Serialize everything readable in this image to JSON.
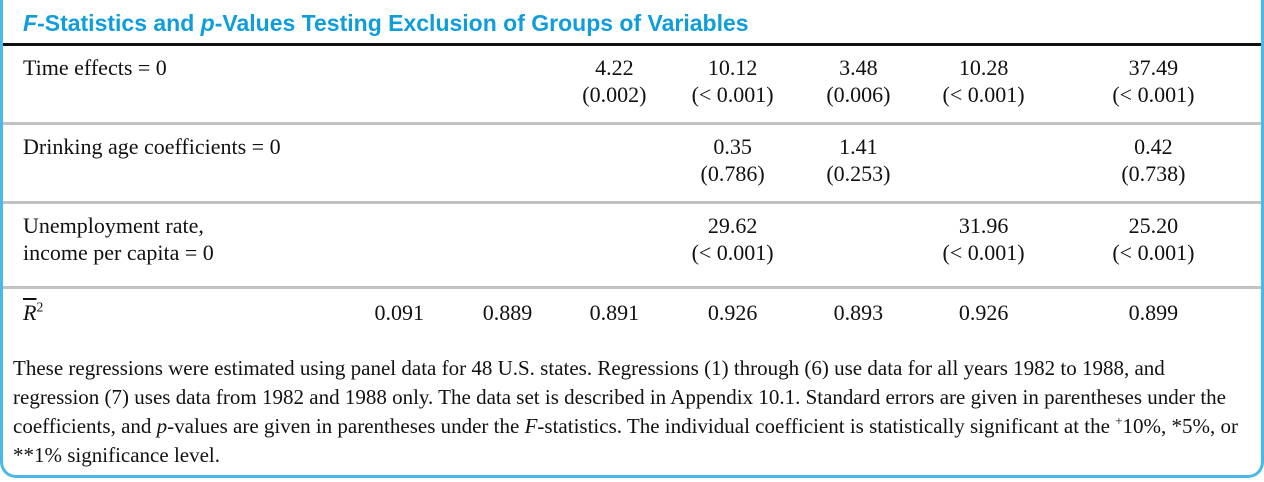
{
  "colors": {
    "accent": "#0f9ddc",
    "border": "#4ab9e9"
  },
  "title": {
    "segments": [
      {
        "t": "F",
        "s": "i"
      },
      {
        "t": "-Statistics and "
      },
      {
        "t": "p",
        "s": "i"
      },
      {
        "t": "-Values Testing Exclusion of Groups of Variables"
      }
    ]
  },
  "table": {
    "rows": [
      {
        "label": "Time effects = 0",
        "cells": [
          {
            "stat": "",
            "p": ""
          },
          {
            "stat": "",
            "p": ""
          },
          {
            "stat": "4.22",
            "p": "(0.002)"
          },
          {
            "stat": "10.12",
            "p": "(< 0.001)"
          },
          {
            "stat": "3.48",
            "p": "(0.006)"
          },
          {
            "stat": "10.28",
            "p": "(< 0.001)"
          },
          {
            "stat": "37.49",
            "p": "(< 0.001)"
          }
        ]
      },
      {
        "label": "Drinking age coefficients = 0",
        "cells": [
          {
            "stat": "",
            "p": ""
          },
          {
            "stat": "",
            "p": ""
          },
          {
            "stat": "",
            "p": ""
          },
          {
            "stat": "0.35",
            "p": "(0.786)"
          },
          {
            "stat": "1.41",
            "p": "(0.253)"
          },
          {
            "stat": "",
            "p": ""
          },
          {
            "stat": "0.42",
            "p": "(0.738)"
          }
        ]
      },
      {
        "label": "Unemployment rate,\nincome per capita = 0",
        "cells": [
          {
            "stat": "",
            "p": ""
          },
          {
            "stat": "",
            "p": ""
          },
          {
            "stat": "",
            "p": ""
          },
          {
            "stat": "29.62",
            "p": "(< 0.001)"
          },
          {
            "stat": "",
            "p": ""
          },
          {
            "stat": "31.96",
            "p": "(< 0.001)"
          },
          {
            "stat": "25.20",
            "p": "(< 0.001)"
          }
        ]
      },
      {
        "label_rich": [
          {
            "t": "R",
            "s": "i ol"
          },
          {
            "t": "2",
            "s": "sup"
          }
        ],
        "cells": [
          {
            "stat": "0.091",
            "p": ""
          },
          {
            "stat": "0.889",
            "p": ""
          },
          {
            "stat": "0.891",
            "p": ""
          },
          {
            "stat": "0.926",
            "p": ""
          },
          {
            "stat": "0.893",
            "p": ""
          },
          {
            "stat": "0.926",
            "p": ""
          },
          {
            "stat": "0.899",
            "p": ""
          }
        ]
      }
    ]
  },
  "footnote": {
    "segments": [
      {
        "t": "These regressions were estimated using panel data for 48 U.S. states. Regressions (1) through (6) use data for all years 1982 to 1988, and regression (7) uses data from 1982 and 1988 only. The data set is described in Appendix 10.1. Standard errors are given in parentheses under the coefficients, and "
      },
      {
        "t": "p",
        "s": "i"
      },
      {
        "t": "-values are given in parentheses under the "
      },
      {
        "t": "F",
        "s": "i"
      },
      {
        "t": "-statistics. The individual coefficient is statistically significant at the "
      },
      {
        "t": "+",
        "s": "sup"
      },
      {
        "t": "10%, *5%, or **1% significance level."
      }
    ]
  }
}
